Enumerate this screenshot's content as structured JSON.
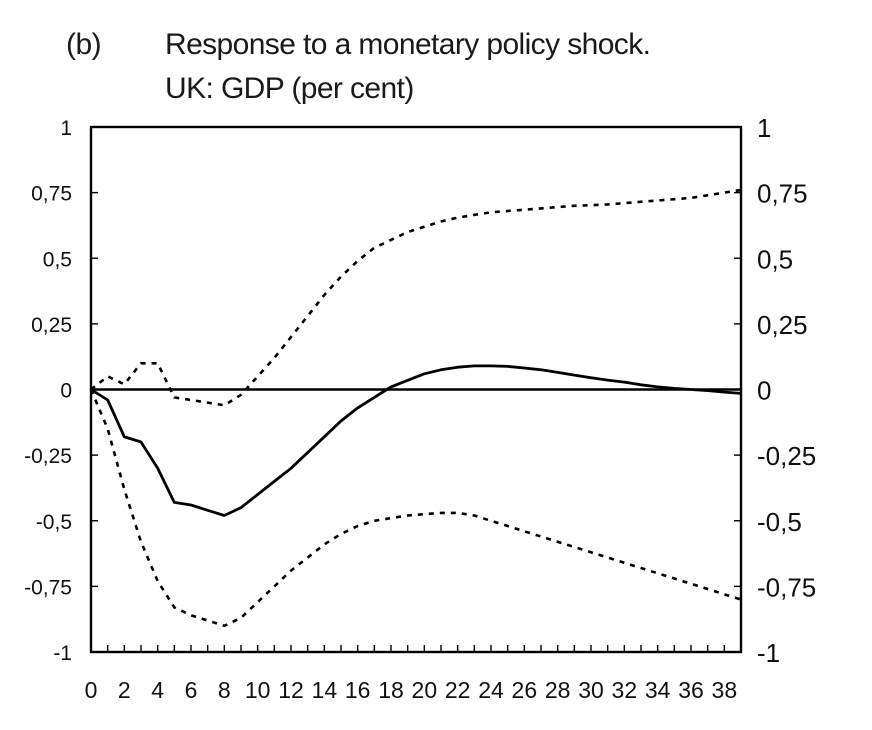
{
  "panel_label": "(b)",
  "title": "Response to a monetary policy shock.",
  "subtitle": "UK: GDP (per cent)",
  "chart_data": {
    "type": "line",
    "title": "Response to a monetary policy shock.",
    "subtitle": "UK: GDP (per cent)",
    "xlabel": "",
    "ylabel": "",
    "xlim": [
      0,
      39
    ],
    "ylim": [
      -1,
      1
    ],
    "x_ticks": [
      0,
      2,
      4,
      6,
      8,
      10,
      12,
      14,
      16,
      18,
      20,
      22,
      24,
      26,
      28,
      30,
      32,
      34,
      36,
      38
    ],
    "x_tick_labels": [
      "0",
      "2",
      "4",
      "6",
      "8",
      "10",
      "12",
      "14",
      "16",
      "18",
      "20",
      "22",
      "24",
      "26",
      "28",
      "30",
      "32",
      "34",
      "36",
      "38"
    ],
    "y_ticks": [
      1,
      0.75,
      0.5,
      0.25,
      0,
      -0.25,
      -0.5,
      -0.75,
      -1
    ],
    "y_tick_labels_left": [
      "1",
      "0,75",
      "0,5",
      "0,25",
      "0",
      "-0,25",
      "-0,5",
      "-0,75",
      "-1"
    ],
    "y_tick_labels_right": [
      "1",
      "0,75",
      "0,5",
      "0,25",
      "0",
      "-0,25",
      "-0,5",
      "-0,75",
      "-1"
    ],
    "grid": false,
    "legend": "none",
    "zero_line": true,
    "series": [
      {
        "style": "solid",
        "color": "#000000",
        "x": [
          0,
          1,
          2,
          3,
          4,
          5,
          6,
          7,
          8,
          9,
          10,
          11,
          12,
          13,
          14,
          15,
          16,
          17,
          18,
          19,
          20,
          21,
          22,
          23,
          24,
          25,
          26,
          27,
          28,
          29,
          30,
          31,
          32,
          33,
          34,
          35,
          36,
          37,
          38,
          39
        ],
        "y": [
          0,
          -0.04,
          -0.18,
          -0.2,
          -0.3,
          -0.43,
          -0.44,
          -0.46,
          -0.48,
          -0.45,
          -0.4,
          -0.35,
          -0.3,
          -0.24,
          -0.18,
          -0.12,
          -0.07,
          -0.03,
          0.01,
          0.035,
          0.06,
          0.075,
          0.085,
          0.09,
          0.09,
          0.088,
          0.082,
          0.075,
          0.065,
          0.055,
          0.045,
          0.036,
          0.028,
          0.018,
          0.01,
          0.004,
          0.0,
          -0.004,
          -0.01,
          -0.015
        ]
      },
      {
        "style": "dotted",
        "color": "#000000",
        "x": [
          0,
          1,
          2,
          3,
          4,
          5,
          6,
          7,
          8,
          9,
          10,
          11,
          12,
          13,
          14,
          15,
          16,
          17,
          18,
          19,
          20,
          21,
          22,
          23,
          24,
          25,
          26,
          27,
          28,
          29,
          30,
          31,
          32,
          33,
          34,
          35,
          36,
          37,
          38,
          39
        ],
        "y": [
          0,
          0.05,
          0.02,
          0.1,
          0.1,
          -0.03,
          -0.04,
          -0.05,
          -0.06,
          -0.02,
          0.05,
          0.12,
          0.2,
          0.28,
          0.36,
          0.43,
          0.49,
          0.54,
          0.57,
          0.6,
          0.62,
          0.64,
          0.655,
          0.665,
          0.675,
          0.68,
          0.685,
          0.69,
          0.695,
          0.7,
          0.702,
          0.705,
          0.71,
          0.715,
          0.72,
          0.725,
          0.73,
          0.74,
          0.75,
          0.76
        ]
      },
      {
        "style": "dotted",
        "color": "#000000",
        "x": [
          0,
          1,
          2,
          3,
          4,
          5,
          6,
          7,
          8,
          9,
          10,
          11,
          12,
          13,
          14,
          15,
          16,
          17,
          18,
          19,
          20,
          21,
          22,
          23,
          24,
          25,
          26,
          27,
          28,
          29,
          30,
          31,
          32,
          33,
          34,
          35,
          36,
          37,
          38,
          39
        ],
        "y": [
          0,
          -0.15,
          -0.38,
          -0.58,
          -0.73,
          -0.83,
          -0.86,
          -0.88,
          -0.9,
          -0.87,
          -0.81,
          -0.75,
          -0.69,
          -0.64,
          -0.59,
          -0.55,
          -0.52,
          -0.5,
          -0.49,
          -0.48,
          -0.475,
          -0.47,
          -0.47,
          -0.48,
          -0.5,
          -0.52,
          -0.54,
          -0.56,
          -0.58,
          -0.6,
          -0.62,
          -0.64,
          -0.66,
          -0.68,
          -0.7,
          -0.72,
          -0.74,
          -0.76,
          -0.78,
          -0.8
        ]
      }
    ]
  }
}
